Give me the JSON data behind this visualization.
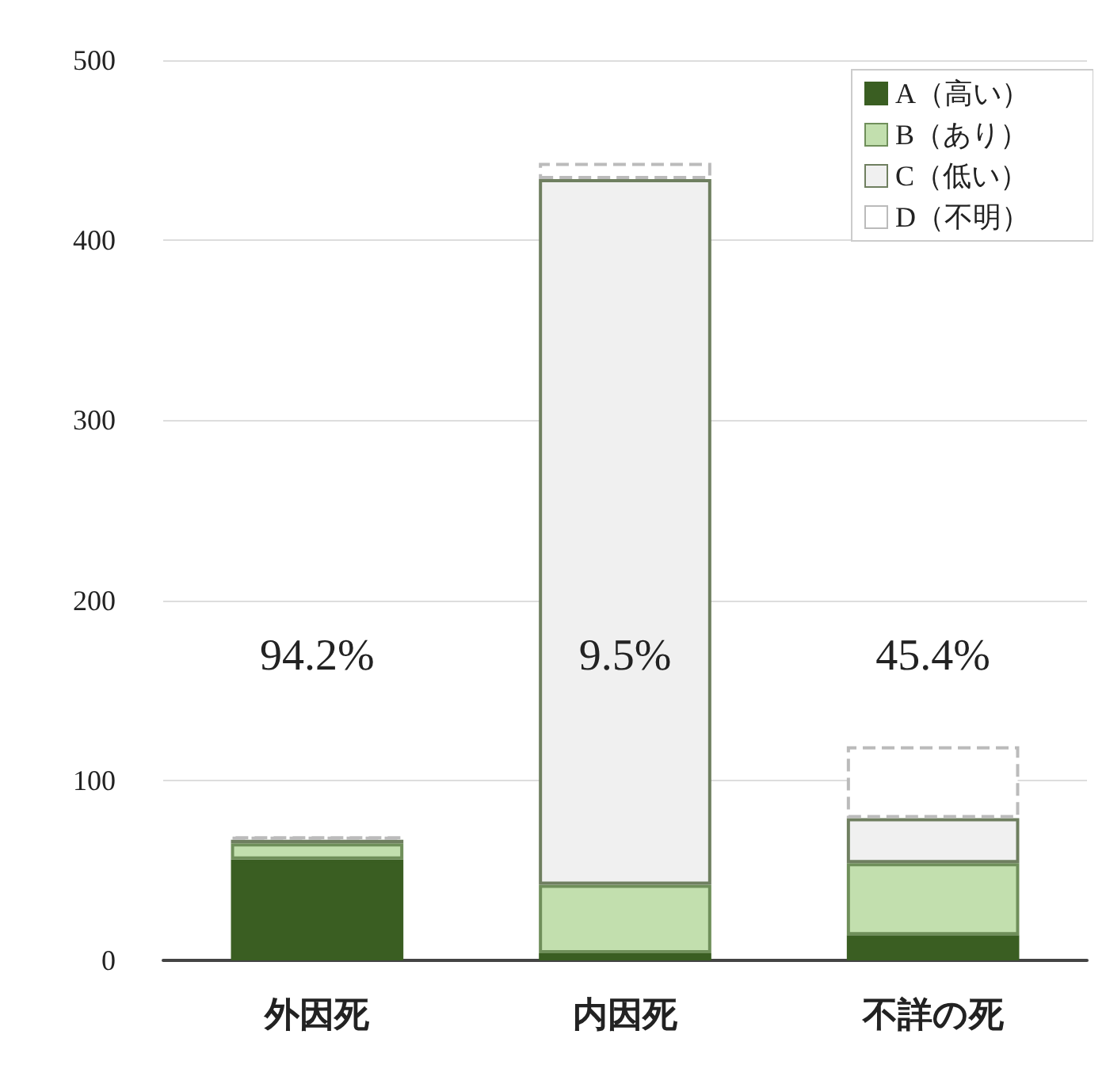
{
  "chart_data": {
    "type": "bar",
    "stacked": true,
    "categories": [
      "外因死",
      "内因死",
      "不詳の死"
    ],
    "series": [
      {
        "name": "A（高い）",
        "color": "#3a5e22",
        "values": [
          56,
          4,
          14
        ]
      },
      {
        "name": "B（あり）",
        "color": "#c2dfae",
        "values": [
          9,
          38,
          40
        ]
      },
      {
        "name": "C（低い）",
        "color": "#f0f0f0",
        "values": [
          2,
          392,
          25
        ]
      },
      {
        "name": "D（不明）",
        "color": "#ffffff",
        "values": [
          2,
          9,
          40
        ]
      }
    ],
    "ylim": [
      0,
      500
    ],
    "yticks": [
      0,
      100,
      200,
      300,
      400,
      500
    ],
    "grid": "y",
    "legend": "top right",
    "annotations": [
      "94.2%",
      "9.5%",
      "45.4%"
    ]
  }
}
